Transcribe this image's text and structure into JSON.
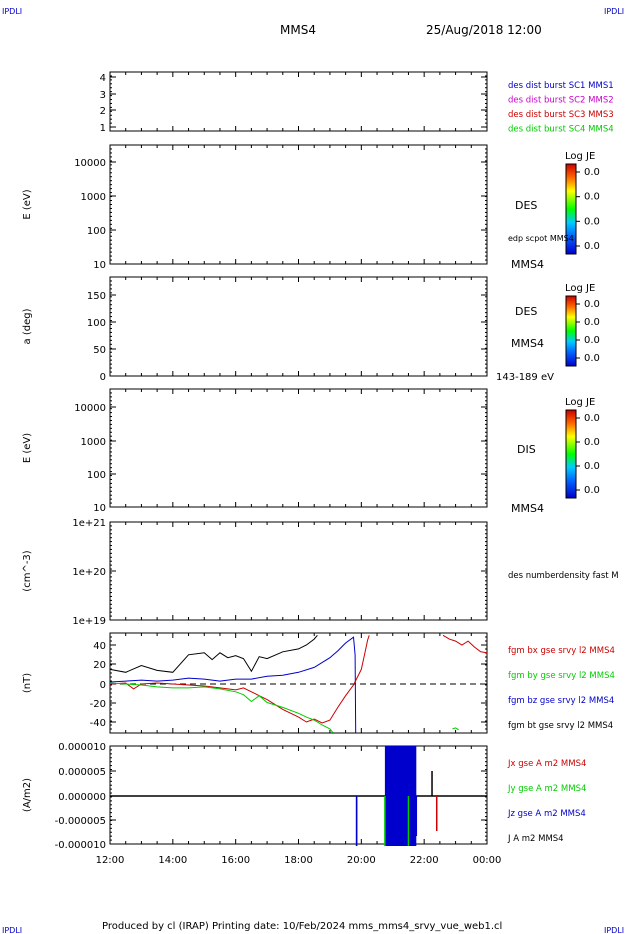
{
  "header": {
    "corner_left": "IPDLI",
    "corner_right": "IPDLI",
    "title": "MMS4",
    "date": "25/Aug/2018 12:00"
  },
  "footer": {
    "text": "Produced by cl (IRAP)   Printing date: 10/Feb/2024   mms_mms4_srvy_vue_web1.cl",
    "corner_left": "IPDLI",
    "corner_right": "IPDLI"
  },
  "colors": {
    "blue": "#0000cc",
    "magenta": "#cc00cc",
    "red": "#cc0000",
    "green": "#00cc00",
    "black": "#000000"
  },
  "chart_data": [
    {
      "type": "line",
      "panel": "spacecraft",
      "ylim": [
        0.5,
        4.5
      ],
      "yticks": [
        "4",
        "3",
        "2",
        "1"
      ],
      "legend": [
        {
          "text": "des dist burst SC1 MMS1",
          "color": "#0000cc"
        },
        {
          "text": "des dist burst SC2 MMS2",
          "color": "#cc00cc"
        },
        {
          "text": "des dist burst SC3 MMS3",
          "color": "#cc0000"
        },
        {
          "text": "des dist burst SC4 MMS4",
          "color": "#00cc00"
        }
      ]
    },
    {
      "type": "heatmap",
      "panel": "des-energy",
      "ylabel": "E (eV)",
      "scale": "log",
      "yticks": [
        "10000",
        "1000",
        "100",
        "10"
      ],
      "side_label": "DES",
      "extra_label": "edp scpot MMS4",
      "sc_label": "MMS4",
      "colorbar": {
        "title": "Log JE",
        "ticks": [
          "0.0",
          "0.0",
          "0.0",
          "0.0"
        ]
      }
    },
    {
      "type": "heatmap",
      "panel": "des-pitch",
      "ylabel": "a (deg)",
      "yticks": [
        "150",
        "100",
        "50",
        "0"
      ],
      "side_label": "DES",
      "sc_label": "MMS4",
      "energy_label": "143-189 eV",
      "colorbar": {
        "title": "Log JE",
        "ticks": [
          "0.0",
          "0.0",
          "0.0",
          "0.0"
        ]
      }
    },
    {
      "type": "heatmap",
      "panel": "dis-energy",
      "ylabel": "E (eV)",
      "scale": "log",
      "yticks": [
        "10000",
        "1000",
        "100",
        "10"
      ],
      "side_label": "DIS",
      "sc_label": "MMS4",
      "colorbar": {
        "title": "Log JE",
        "ticks": [
          "0.0",
          "0.0",
          "0.0",
          "0.0"
        ]
      }
    },
    {
      "type": "line",
      "panel": "density",
      "ylabel": "(cm^-3)",
      "scale": "log",
      "yticks": [
        "1e+21",
        "1e+20",
        "1e+19"
      ],
      "legend": [
        {
          "text": "des numberdensity fast M",
          "color": "#000000"
        }
      ]
    },
    {
      "type": "line",
      "panel": "magnetic-field",
      "ylabel": "(nT)",
      "ylim": [
        -50,
        50
      ],
      "yticks": [
        "40",
        "20",
        "0",
        "-20",
        "-40"
      ],
      "legend": [
        {
          "text": "fgm bx gse srvy l2 MMS4",
          "color": "#cc0000"
        },
        {
          "text": "fgm by gse srvy l2 MMS4",
          "color": "#00cc00"
        },
        {
          "text": "fgm bz gse srvy l2 MMS4",
          "color": "#0000cc"
        },
        {
          "text": "fgm bt gse srvy l2 MMS4",
          "color": "#000000"
        }
      ],
      "series": [
        {
          "name": "fgm bt gse srvy l2 MMS4",
          "color": "#000000",
          "x": [
            12.0,
            12.5,
            13.0,
            13.5,
            14.0,
            14.5,
            15.0,
            15.25,
            15.5,
            15.75,
            16.0,
            16.25,
            16.5,
            16.75,
            17.0,
            17.5,
            18.0,
            18.25,
            18.5,
            18.6
          ],
          "y": [
            15,
            12,
            19,
            14,
            12,
            30,
            32,
            25,
            32,
            27,
            29,
            26,
            13,
            28,
            26,
            33,
            36,
            40,
            46,
            50
          ]
        },
        {
          "name": "fgm bz gse srvy l2 MMS4",
          "color": "#0000cc",
          "x": [
            12.0,
            12.5,
            13.0,
            13.5,
            14.0,
            14.5,
            15.0,
            15.5,
            16.0,
            16.5,
            17.0,
            17.5,
            18.0,
            18.5,
            19.0,
            19.25,
            19.5,
            19.75,
            19.8,
            19.82
          ],
          "y": [
            2,
            3,
            4,
            3,
            4,
            6,
            5,
            3,
            5,
            5,
            8,
            9,
            12,
            17,
            27,
            34,
            42,
            48,
            30,
            -50
          ]
        },
        {
          "name": "fgm bx gse srvy l2 MMS4",
          "color": "#cc0000",
          "x": [
            12.0,
            12.5,
            12.75,
            13.0,
            13.5,
            14.0,
            14.5,
            15.0,
            15.5,
            16.0,
            16.25,
            16.5,
            16.75,
            17.0,
            17.5,
            18.0,
            18.25,
            18.5,
            18.75,
            19.0,
            19.25,
            19.5,
            19.75,
            20.0,
            20.1,
            20.2,
            20.25,
            22.6,
            22.8,
            23.0,
            23.2,
            23.4,
            23.6,
            23.8,
            24.0
          ],
          "y": [
            0,
            1,
            -5,
            0,
            1,
            0,
            -1,
            -2,
            -4,
            -6,
            -4,
            -8,
            -12,
            -16,
            -26,
            -34,
            -39,
            -36,
            -40,
            -37,
            -24,
            -12,
            -1,
            15,
            30,
            45,
            50,
            50,
            46,
            44,
            40,
            44,
            38,
            33,
            32
          ]
        },
        {
          "name": "fgm by gse srvy l2 MMS4",
          "color": "#00cc00",
          "x": [
            12.0,
            12.5,
            13.0,
            13.5,
            14.0,
            14.5,
            15.0,
            15.5,
            16.0,
            16.25,
            16.5,
            16.75,
            17.0,
            17.5,
            18.0,
            18.25,
            18.5,
            18.75,
            19.0,
            19.1,
            22.9,
            23.0,
            23.1
          ],
          "y": [
            1,
            0,
            -1,
            -3,
            -4,
            -4,
            -3,
            -5,
            -8,
            -11,
            -18,
            -12,
            -19,
            -24,
            -30,
            -34,
            -37,
            -42,
            -46,
            -50,
            -46,
            -45,
            -47
          ]
        }
      ]
    },
    {
      "type": "line",
      "panel": "current-density",
      "ylabel": "(A/m2)",
      "ylim": [
        -1e-05,
        1e-05
      ],
      "yticks": [
        "0.000010",
        "0.000005",
        "0.000000",
        "-0.000005",
        "-0.000010"
      ],
      "legend": [
        {
          "text": "Jx gse A m2 MMS4",
          "color": "#cc0000"
        },
        {
          "text": "Jy gse A m2 MMS4",
          "color": "#00cc00"
        },
        {
          "text": "Jz gse A m2 MMS4",
          "color": "#0000cc"
        },
        {
          "text": "J A m2 MMS4",
          "color": "#000000"
        }
      ],
      "spikes": [
        {
          "x": 19.85,
          "y": -1e-05,
          "color": "#cc00cc"
        },
        {
          "x": 19.85,
          "y": -1e-05,
          "color": "#0000cc"
        },
        {
          "x": 20.75,
          "y": -1e-05,
          "color": "#00cc00"
        },
        {
          "x": 21.5,
          "y": -1e-05,
          "color": "#00cc00"
        },
        {
          "x": 21.75,
          "y": -8e-06,
          "color": "#0000cc"
        },
        {
          "x": 22.25,
          "y": 5e-06,
          "color": "#000000"
        },
        {
          "x": 22.4,
          "y": -7e-06,
          "color": "#cc0000"
        }
      ],
      "burst": {
        "x_start": 20.75,
        "x_end": 21.75,
        "y_min": -1e-05,
        "y_max": 1e-05,
        "color": "#0000cc"
      }
    }
  ],
  "xaxis": {
    "ticks": [
      "12:00",
      "14:00",
      "16:00",
      "18:00",
      "20:00",
      "22:00",
      "00:00"
    ],
    "xlim": [
      12,
      24
    ]
  }
}
